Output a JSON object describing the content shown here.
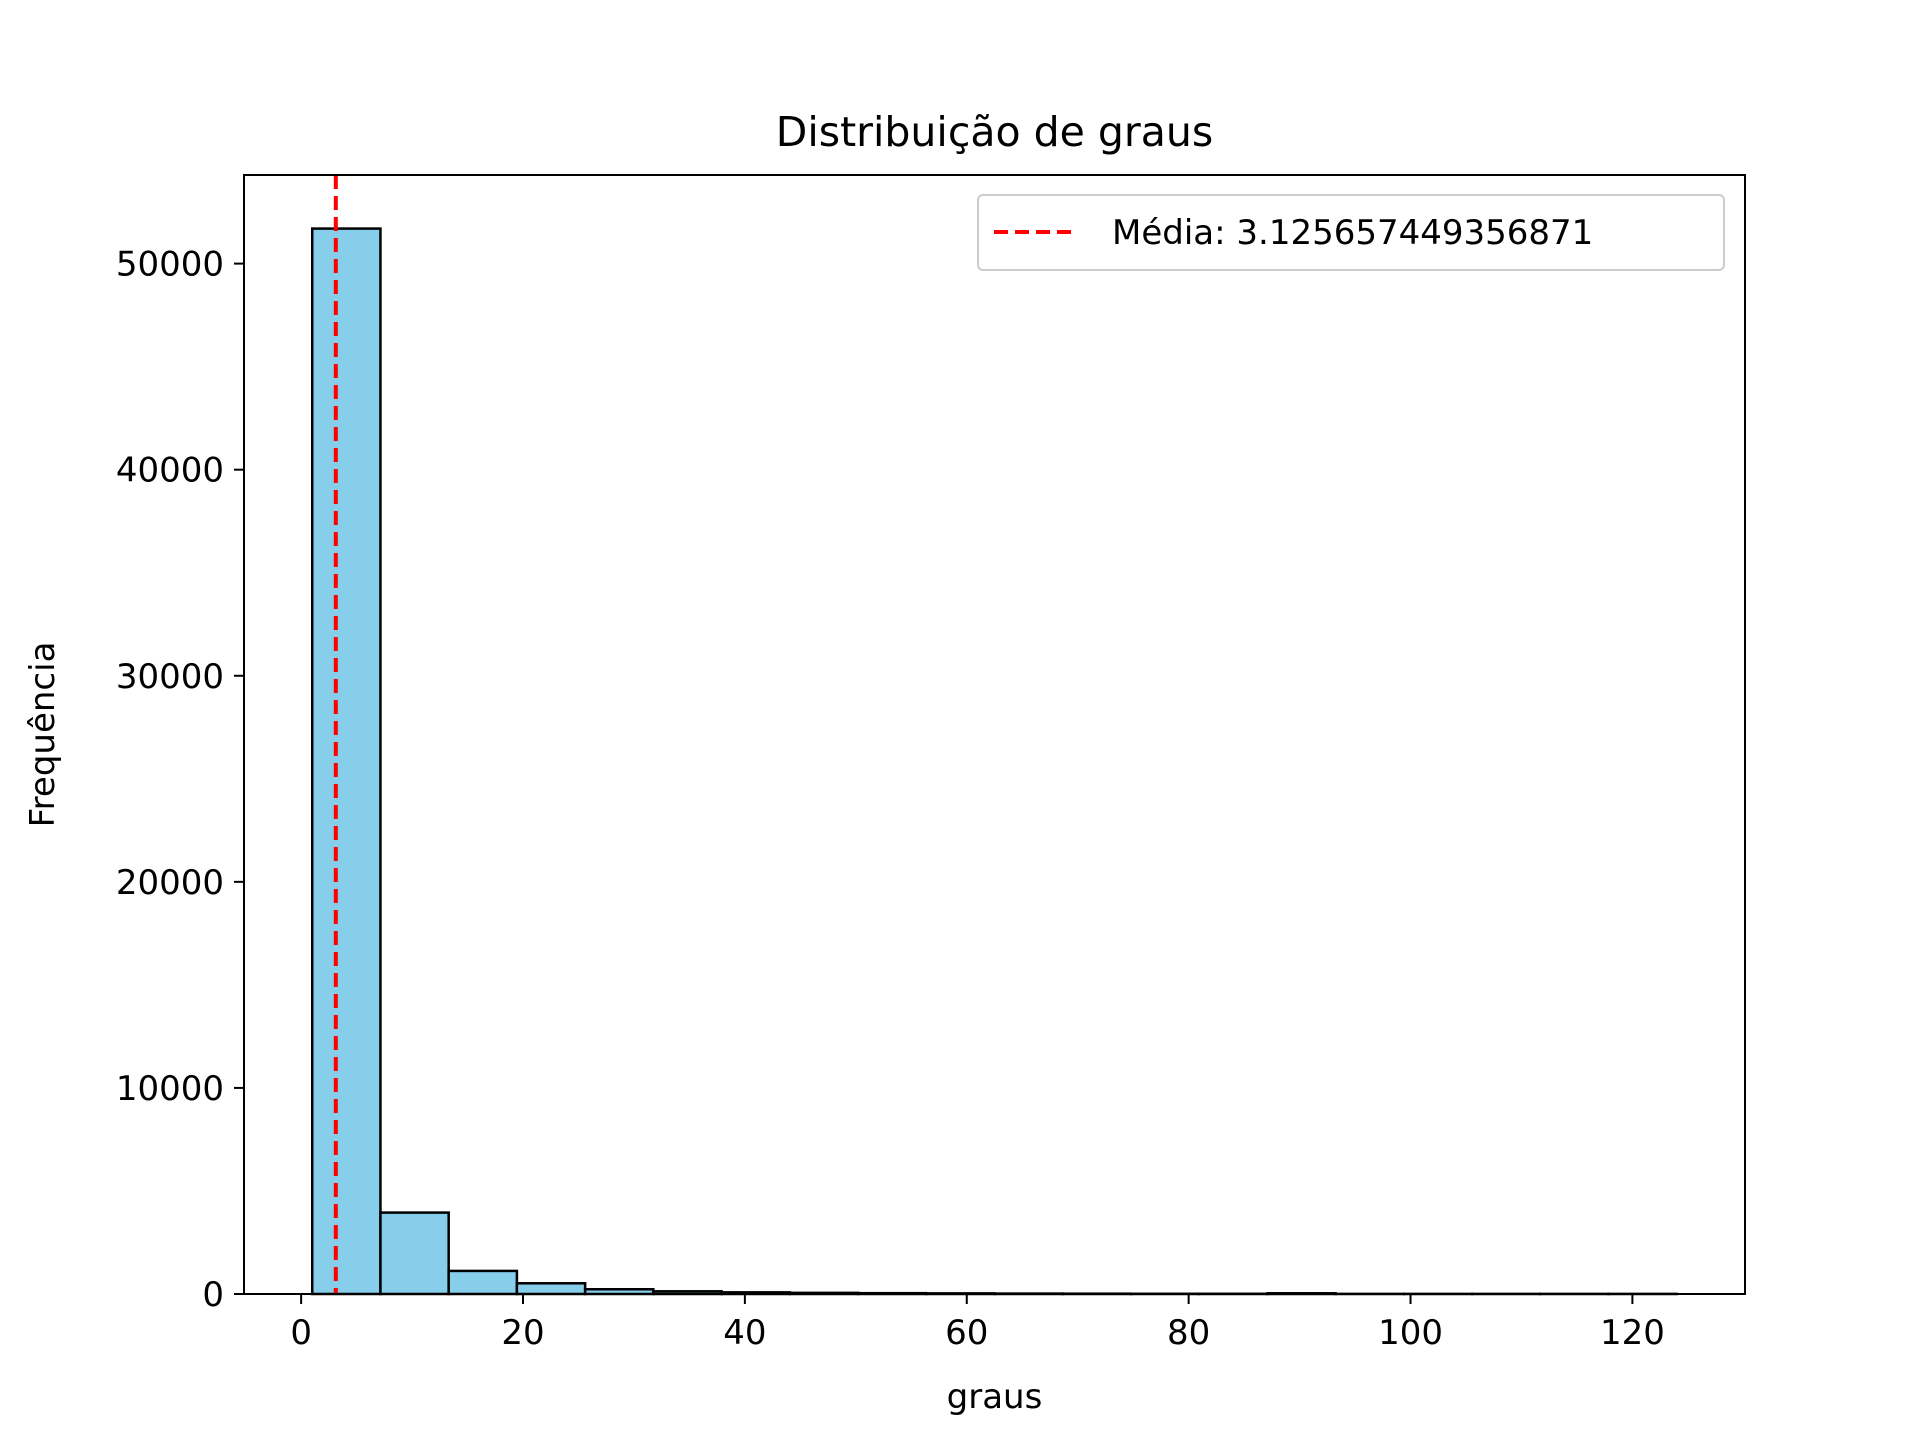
{
  "chart_data": {
    "type": "bar",
    "title": "Distribuição de graus",
    "xlabel": "graus",
    "ylabel": "Frequência",
    "xlim": [
      -5.15,
      130.15
    ],
    "ylim": [
      0,
      54300
    ],
    "xticks": [
      0,
      20,
      40,
      60,
      80,
      100,
      120
    ],
    "yticks": [
      0,
      10000,
      20000,
      30000,
      40000,
      50000
    ],
    "grid": false,
    "legend_position": "top-right",
    "bin_edges": [
      1,
      7.15,
      13.3,
      19.45,
      25.6,
      31.75,
      37.9,
      44.05,
      50.2,
      56.35,
      62.5,
      68.65,
      74.8,
      80.95,
      87.1,
      93.25,
      99.4,
      105.55,
      111.7,
      117.85,
      124
    ],
    "values": [
      51700,
      3950,
      1120,
      520,
      230,
      130,
      80,
      55,
      40,
      30,
      20,
      15,
      10,
      10,
      35,
      5,
      5,
      5,
      5,
      5
    ],
    "bar_color": "#87ceeb",
    "edge_color": "#000000",
    "mean_line": {
      "x": 3.125657449356871,
      "color": "#ff0000",
      "label": "Média: 3.125657449356871"
    }
  }
}
